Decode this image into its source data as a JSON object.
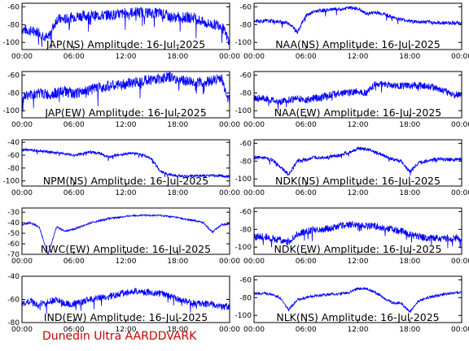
{
  "footer": "Dunedin Ultra AARDDVARK",
  "line_color": "#0000ff",
  "chart_data": [
    {
      "type": "line",
      "title": "JAP(NS) Amplitude: 16-Jul-2025",
      "xticks": [
        "00:00",
        "06:00",
        "12:00",
        "18:00",
        "00:00"
      ],
      "xlim": [
        0,
        24
      ],
      "ylim": [
        -108,
        -56
      ],
      "yticks": [
        -100,
        -80,
        -60
      ],
      "x": [
        0,
        1,
        2,
        3,
        4,
        5,
        6,
        7,
        8,
        9,
        10,
        11,
        12,
        13,
        14,
        15,
        16,
        17,
        18,
        19,
        20,
        21,
        22,
        23,
        24
      ],
      "y": [
        -85,
        -87,
        -88,
        -96,
        -74,
        -74,
        -71,
        -70,
        -70,
        -70,
        -69,
        -69,
        -67,
        -66,
        -66,
        -67,
        -67,
        -71,
        -72,
        -72,
        -72,
        -78,
        -80,
        -80,
        -100
      ],
      "noise": 6
    },
    {
      "type": "line",
      "title": "NAA(NS) Amplitude: 16-Jul-2025",
      "xticks": [
        "00:00",
        "06:00",
        "12:00",
        "18:00",
        "00:00"
      ],
      "xlim": [
        0,
        24
      ],
      "ylim": [
        -108,
        -56
      ],
      "yticks": [
        -100,
        -80,
        -60
      ],
      "x": [
        0,
        1,
        2,
        3,
        4,
        5,
        6,
        7,
        8,
        9,
        10,
        11,
        12,
        13,
        14,
        15,
        16,
        17,
        18,
        19,
        20,
        21,
        22,
        23,
        24
      ],
      "y": [
        -76,
        -76,
        -76,
        -77,
        -78,
        -88,
        -70,
        -65,
        -64,
        -63,
        -63,
        -61,
        -62,
        -68,
        -66,
        -68,
        -72,
        -74,
        -76,
        -77,
        -77,
        -78,
        -78,
        -78,
        -78
      ],
      "noise": 2
    },
    {
      "type": "line",
      "title": "JAP(EW) Amplitude: 16-Jul-2025",
      "xticks": [
        "00:00",
        "06:00",
        "12:00",
        "18:00",
        "00:00"
      ],
      "xlim": [
        0,
        24
      ],
      "ylim": [
        -108,
        -56
      ],
      "yticks": [
        -100,
        -80,
        -60
      ],
      "x": [
        0,
        1,
        2,
        3,
        4,
        5,
        6,
        7,
        8,
        9,
        10,
        11,
        12,
        13,
        14,
        15,
        16,
        17,
        18,
        19,
        20,
        21,
        22,
        23,
        24
      ],
      "y": [
        -85,
        -82,
        -80,
        -82,
        -80,
        -78,
        -82,
        -78,
        -76,
        -74,
        -72,
        -72,
        -70,
        -68,
        -66,
        -65,
        -64,
        -62,
        -65,
        -67,
        -68,
        -68,
        -66,
        -63,
        -90
      ],
      "noise": 6
    },
    {
      "type": "line",
      "title": "NAA(EW) Amplitude: 16-Jul-2025",
      "xticks": [
        "00:00",
        "06:00",
        "12:00",
        "18:00",
        "00:00"
      ],
      "xlim": [
        0,
        24
      ],
      "ylim": [
        -108,
        -56
      ],
      "yticks": [
        -100,
        -80,
        -60
      ],
      "x": [
        0,
        1,
        2,
        3,
        4,
        5,
        6,
        7,
        8,
        9,
        10,
        11,
        12,
        13,
        14,
        15,
        16,
        17,
        18,
        19,
        20,
        21,
        22,
        23,
        24
      ],
      "y": [
        -86,
        -86,
        -88,
        -90,
        -88,
        -86,
        -88,
        -86,
        -84,
        -82,
        -80,
        -80,
        -78,
        -80,
        -70,
        -70,
        -72,
        -72,
        -72,
        -72,
        -72,
        -74,
        -78,
        -82,
        -82
      ],
      "noise": 4
    },
    {
      "type": "line",
      "title": "NPM(NS) Amplitude: 16-Jul-2025",
      "xticks": [
        "00:00",
        "06:00",
        "12:00",
        "18:00",
        "00:00"
      ],
      "xlim": [
        0,
        24
      ],
      "ylim": [
        -108,
        -36
      ],
      "yticks": [
        -100,
        -80,
        -60,
        -40
      ],
      "x": [
        0,
        1,
        2,
        3,
        4,
        5,
        6,
        7,
        8,
        9,
        10,
        11,
        12,
        13,
        14,
        15,
        16,
        17,
        18,
        19,
        20,
        21,
        22,
        23,
        24
      ],
      "y": [
        -52,
        -52,
        -53,
        -55,
        -56,
        -58,
        -60,
        -57,
        -55,
        -57,
        -63,
        -60,
        -58,
        -57,
        -60,
        -66,
        -85,
        -90,
        -92,
        -93,
        -92,
        -92,
        -92,
        -92,
        -93
      ],
      "noise": 2
    },
    {
      "type": "line",
      "title": "NDK(NS) Amplitude: 16-Jul-2025",
      "xticks": [
        "00:00",
        "06:00",
        "12:00",
        "18:00",
        "00:00"
      ],
      "xlim": [
        0,
        24
      ],
      "ylim": [
        -108,
        -56
      ],
      "yticks": [
        -100,
        -80,
        -60
      ],
      "x": [
        0,
        1,
        2,
        3,
        4,
        5,
        6,
        7,
        8,
        9,
        10,
        11,
        12,
        13,
        14,
        15,
        16,
        17,
        18,
        19,
        20,
        21,
        22,
        23,
        24
      ],
      "y": [
        -76,
        -76,
        -78,
        -86,
        -95,
        -80,
        -78,
        -76,
        -76,
        -75,
        -73,
        -70,
        -66,
        -66,
        -70,
        -74,
        -78,
        -80,
        -92,
        -82,
        -80,
        -78,
        -78,
        -78,
        -78
      ],
      "noise": 2
    },
    {
      "type": "line",
      "title": "NWC(EW) Amplitude: 16-Jul-2025",
      "xticks": [
        "00:00",
        "06:00",
        "12:00",
        "18:00",
        "00:00"
      ],
      "xlim": [
        0,
        24
      ],
      "ylim": [
        -70,
        -26
      ],
      "yticks": [
        -70,
        -60,
        -50,
        -40,
        -30
      ],
      "x": [
        0,
        1,
        2,
        3,
        4,
        5,
        6,
        7,
        8,
        9,
        10,
        11,
        12,
        13,
        14,
        15,
        16,
        17,
        18,
        19,
        20,
        21,
        22,
        23,
        24
      ],
      "y": [
        -42,
        -40,
        -44,
        -70,
        -44,
        -48,
        -46,
        -43,
        -40,
        -38,
        -36,
        -35,
        -34,
        -33,
        -33,
        -33,
        -33,
        -34,
        -35,
        -37,
        -38,
        -40,
        -49,
        -42,
        -41
      ],
      "noise": 0.8
    },
    {
      "type": "line",
      "title": "NDK(EW) Amplitude: 16-Jul-2025",
      "xticks": [
        "00:00",
        "06:00",
        "12:00",
        "18:00",
        "00:00"
      ],
      "xlim": [
        0,
        24
      ],
      "ylim": [
        -108,
        -56
      ],
      "yticks": [
        -100,
        -80,
        -60
      ],
      "x": [
        0,
        1,
        2,
        3,
        4,
        5,
        6,
        7,
        8,
        9,
        10,
        11,
        12,
        13,
        14,
        15,
        16,
        17,
        18,
        19,
        20,
        21,
        22,
        23,
        24
      ],
      "y": [
        -88,
        -88,
        -90,
        -92,
        -94,
        -86,
        -82,
        -80,
        -80,
        -78,
        -76,
        -75,
        -75,
        -76,
        -76,
        -78,
        -80,
        -82,
        -86,
        -88,
        -90,
        -90,
        -90,
        -90,
        -90
      ],
      "noise": 4
    },
    {
      "type": "line",
      "title": "IND(EW) Amplitude: 16-Jul-2025",
      "xticks": [
        "00:00",
        "06:00",
        "12:00",
        "18:00",
        "00:00"
      ],
      "xlim": [
        0,
        24
      ],
      "ylim": [
        -80,
        -40
      ],
      "yticks": [
        -80,
        -60,
        -40
      ],
      "x": [
        0,
        1,
        2,
        3,
        4,
        5,
        6,
        7,
        8,
        9,
        10,
        11,
        12,
        13,
        14,
        15,
        16,
        17,
        18,
        19,
        20,
        21,
        22,
        23,
        24
      ],
      "y": [
        -64,
        -62,
        -64,
        -62,
        -60,
        -64,
        -64,
        -62,
        -60,
        -58,
        -58,
        -56,
        -54,
        -53,
        -53,
        -54,
        -55,
        -57,
        -60,
        -62,
        -63,
        -64,
        -64,
        -66,
        -66
      ],
      "noise": 3
    },
    {
      "type": "line",
      "title": "NLK(NS) Amplitude: 16-Jul-2025",
      "xticks": [
        "00:00",
        "06:00",
        "12:00",
        "18:00",
        "00:00"
      ],
      "xlim": [
        0,
        24
      ],
      "ylim": [
        -108,
        -56
      ],
      "yticks": [
        -100,
        -80,
        -60
      ],
      "x": [
        0,
        1,
        2,
        3,
        4,
        5,
        6,
        7,
        8,
        9,
        10,
        11,
        12,
        13,
        14,
        15,
        16,
        17,
        18,
        19,
        20,
        21,
        22,
        23,
        24
      ],
      "y": [
        -76,
        -75,
        -76,
        -80,
        -94,
        -82,
        -80,
        -78,
        -77,
        -76,
        -76,
        -74,
        -70,
        -70,
        -74,
        -80,
        -86,
        -86,
        -96,
        -84,
        -80,
        -78,
        -76,
        -75,
        -74
      ],
      "noise": 1.5
    }
  ]
}
